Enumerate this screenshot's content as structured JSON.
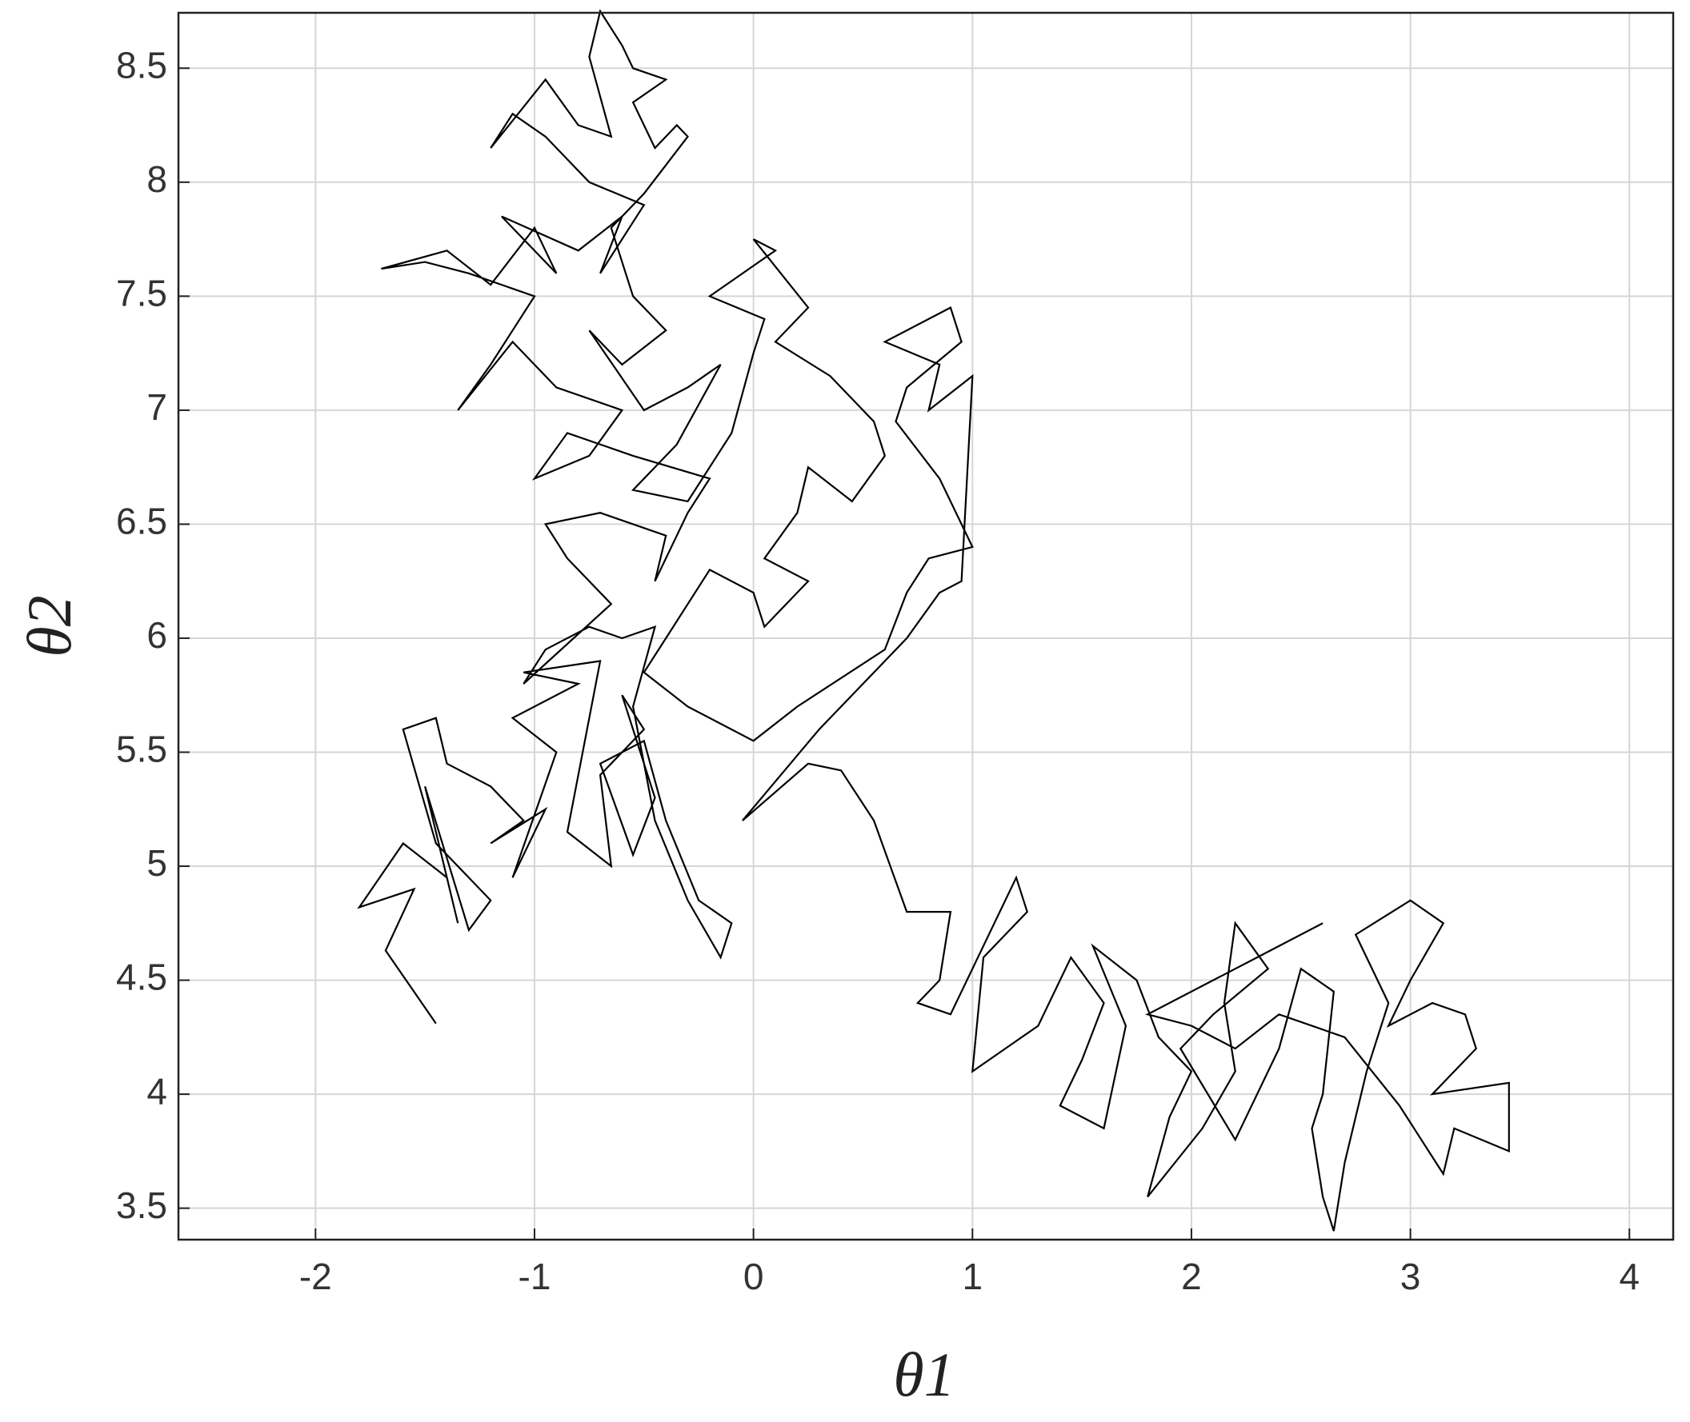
{
  "chart_data": {
    "type": "line",
    "xlabel": "θ1",
    "ylabel": "θ2",
    "xlim": [
      -2.626,
      4.2
    ],
    "ylim": [
      3.362,
      8.743
    ],
    "xticks": [
      -2,
      -1,
      0,
      1,
      2,
      3,
      4
    ],
    "yticks": [
      3.5,
      4,
      4.5,
      5,
      5.5,
      6,
      6.5,
      7,
      7.5,
      8,
      8.5
    ],
    "grid": true,
    "color": "#000000",
    "x": [
      -1.45,
      -1.68,
      -1.55,
      -1.8,
      -1.6,
      -1.4,
      -1.35,
      -1.5,
      -1.3,
      -1.2,
      -1.45,
      -1.6,
      -1.45,
      -1.4,
      -1.2,
      -1.05,
      -1.2,
      -0.95,
      -1.1,
      -0.9,
      -1.1,
      -0.8,
      -1.05,
      -0.7,
      -0.85,
      -0.65,
      -0.7,
      -0.5,
      -0.6,
      -0.45,
      -0.55,
      -0.7,
      -0.5,
      -0.4,
      -0.25,
      -0.1,
      -0.15,
      -0.3,
      -0.45,
      -0.55,
      -0.45,
      -0.6,
      -0.75,
      -0.95,
      -1.05,
      -0.65,
      -0.85,
      -0.95,
      -0.7,
      -0.4,
      -0.45,
      -0.3,
      -0.2,
      -0.55,
      -0.85,
      -1.0,
      -0.75,
      -0.6,
      -0.9,
      -1.1,
      -1.35,
      -1.2,
      -1.0,
      -1.3,
      -1.5,
      -1.7,
      -1.4,
      -1.2,
      -1.0,
      -0.9,
      -1.15,
      -0.8,
      -0.6,
      -0.7,
      -0.5,
      -0.75,
      -0.95,
      -1.1,
      -1.2,
      -0.95,
      -0.8,
      -0.65,
      -0.75,
      -0.7,
      -0.6,
      -0.55,
      -0.4,
      -0.55,
      -0.45,
      -0.35,
      -0.3,
      -0.5,
      -0.65,
      -0.55,
      -0.4,
      -0.6,
      -0.75,
      -0.5,
      -0.3,
      -0.15,
      -0.35,
      -0.55,
      -0.3,
      -0.1,
      0.0,
      0.05,
      -0.2,
      0.1,
      0.0,
      0.25,
      0.1,
      0.35,
      0.55,
      0.6,
      0.45,
      0.25,
      0.2,
      0.05,
      0.25,
      0.05,
      0.0,
      -0.2,
      -0.4,
      -0.5,
      -0.3,
      0.0,
      0.2,
      0.6,
      0.7,
      0.8,
      1.0,
      0.85,
      0.65,
      0.7,
      0.95,
      0.9,
      0.6,
      0.85,
      0.8,
      1.0,
      0.95,
      0.85,
      0.7,
      0.3,
      -0.05,
      0.25,
      0.4,
      0.55,
      0.7,
      0.9,
      0.85,
      0.75,
      0.9,
      1.2,
      1.25,
      1.05,
      1.0,
      1.3,
      1.45,
      1.6,
      1.5,
      1.4,
      1.6,
      1.7,
      1.55,
      1.75,
      1.85,
      2.0,
      1.9,
      1.8,
      2.05,
      2.2,
      2.15,
      2.2,
      2.35,
      2.1,
      1.95,
      2.2,
      2.4,
      2.5,
      2.65,
      2.6,
      2.55,
      2.6,
      2.65,
      2.7,
      2.8,
      2.9,
      2.75,
      3.0,
      3.15,
      3.0,
      2.9,
      3.1,
      3.25,
      3.3,
      3.1,
      3.45,
      3.45,
      3.2,
      3.15,
      2.95,
      2.7,
      2.4,
      2.2,
      2.0,
      1.8,
      2.3,
      2.6
    ],
    "values": [
      4.31,
      4.63,
      4.9,
      4.82,
      5.1,
      4.95,
      4.75,
      5.35,
      4.72,
      4.85,
      5.1,
      5.6,
      5.65,
      5.45,
      5.35,
      5.2,
      5.1,
      5.25,
      4.95,
      5.5,
      5.65,
      5.8,
      5.85,
      5.9,
      5.15,
      5.0,
      5.4,
      5.6,
      5.75,
      5.3,
      5.05,
      5.45,
      5.55,
      5.2,
      4.85,
      4.75,
      4.6,
      4.85,
      5.2,
      5.7,
      6.05,
      6.0,
      6.05,
      5.95,
      5.8,
      6.15,
      6.35,
      6.5,
      6.55,
      6.45,
      6.25,
      6.55,
      6.7,
      6.8,
      6.9,
      6.7,
      6.8,
      7.0,
      7.1,
      7.3,
      7.0,
      7.2,
      7.5,
      7.6,
      7.65,
      7.62,
      7.7,
      7.55,
      7.8,
      7.6,
      7.85,
      7.7,
      7.85,
      7.6,
      7.9,
      8.0,
      8.2,
      8.3,
      8.15,
      8.45,
      8.25,
      8.2,
      8.55,
      8.75,
      8.6,
      8.5,
      8.45,
      8.35,
      8.15,
      8.25,
      8.2,
      7.95,
      7.8,
      7.5,
      7.35,
      7.2,
      7.35,
      7.0,
      7.1,
      7.2,
      6.85,
      6.65,
      6.6,
      6.9,
      7.25,
      7.4,
      7.5,
      7.7,
      7.75,
      7.45,
      7.3,
      7.15,
      6.95,
      6.8,
      6.6,
      6.75,
      6.55,
      6.35,
      6.25,
      6.05,
      6.2,
      6.3,
      6.0,
      5.85,
      5.7,
      5.55,
      5.7,
      5.95,
      6.2,
      6.35,
      6.4,
      6.7,
      6.95,
      7.1,
      7.3,
      7.45,
      7.3,
      7.2,
      7.0,
      7.15,
      6.25,
      6.2,
      6.0,
      5.6,
      5.2,
      5.45,
      5.42,
      5.2,
      4.8,
      4.8,
      4.5,
      4.4,
      4.35,
      4.95,
      4.8,
      4.6,
      4.1,
      4.3,
      4.6,
      4.4,
      4.15,
      3.95,
      3.85,
      4.3,
      4.65,
      4.5,
      4.25,
      4.1,
      3.9,
      3.55,
      3.85,
      4.1,
      4.4,
      4.75,
      4.55,
      4.35,
      4.2,
      3.8,
      4.2,
      4.55,
      4.45,
      4.0,
      3.85,
      3.55,
      3.4,
      3.7,
      4.1,
      4.4,
      4.7,
      4.85,
      4.75,
      4.5,
      4.3,
      4.4,
      4.35,
      4.2,
      4.0,
      4.05,
      3.75,
      3.85,
      3.65,
      3.95,
      4.25,
      4.35,
      4.2,
      4.3,
      4.35,
      4.6,
      4.75
    ]
  }
}
